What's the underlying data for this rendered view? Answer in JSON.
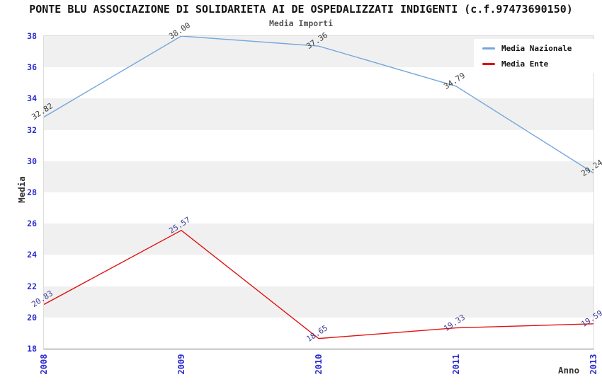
{
  "title": "PONTE BLU ASSOCIAZIONE DI SOLIDARIETA AI DE OSPEDALIZZATI INDIGENTI (c.f.97473690150)",
  "subtitle": "Media Importi",
  "x_axis_label": "Anno",
  "y_axis_label": "Media",
  "colors": {
    "tick_label": "#2b2bcf",
    "band_gray": "#f0f0f0",
    "band_white": "#ffffff",
    "axis_bottom": "#6e6e6e",
    "axis_frame": "#dcdcdc",
    "title": "#141414",
    "subtitle": "#555555",
    "axis_title": "#333333",
    "legend_background": "#ffffff"
  },
  "chart_data": {
    "type": "line",
    "title": "Media Importi",
    "xlabel": "Anno",
    "ylabel": "Media",
    "categories": [
      "2008",
      "2009",
      "2010",
      "2011",
      "2013"
    ],
    "series": [
      {
        "name": "Media Nazionale",
        "color": "#74a7dc",
        "label_color": "#3a3a3a",
        "values": [
          32.82,
          38.0,
          37.36,
          34.79,
          29.24
        ],
        "labels": [
          "32.82",
          "38.00",
          "37.36",
          "34.79",
          "29.24"
        ]
      },
      {
        "name": "Media Ente",
        "color": "#e01212",
        "label_color": "#3c3c96",
        "values": [
          20.83,
          25.57,
          18.65,
          19.33,
          19.59
        ],
        "labels": [
          "20.83",
          "25.57",
          "18.65",
          "19.33",
          "19.59"
        ]
      }
    ],
    "ylim": [
      18,
      38
    ],
    "y_tick_step": 2,
    "y_tick_labels": [
      "18",
      "20",
      "22",
      "24",
      "26",
      "28",
      "30",
      "32",
      "34",
      "36",
      "38"
    ],
    "legend_position": "top-right",
    "grid": "horizontal-bands"
  }
}
